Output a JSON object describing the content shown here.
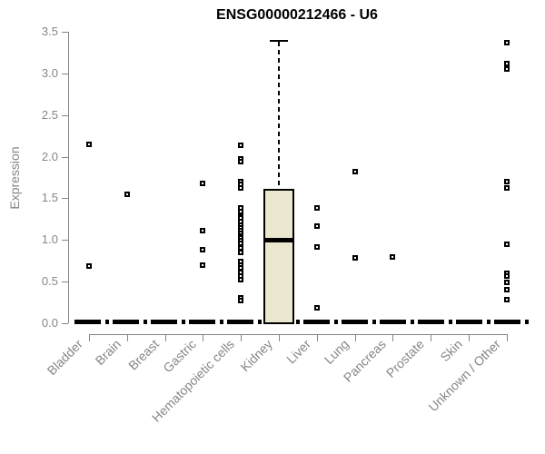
{
  "title": "ENSG00000212466 - U6",
  "y_axis": {
    "label": "Expression",
    "ticks": [
      "0.0",
      "0.5",
      "1.0",
      "1.5",
      "2.0",
      "2.5",
      "3.0",
      "3.5"
    ],
    "min": 0,
    "max": 3.5
  },
  "chart_data": {
    "type": "boxplot",
    "title": "ENSG00000212466 - U6",
    "xlabel": "",
    "ylabel": "Expression",
    "ylim": [
      0,
      3.5
    ],
    "grid": false,
    "categories": [
      "Bladder",
      "Brain",
      "Breast",
      "Gastric",
      "Hematopoietic cells",
      "Kidney",
      "Liver",
      "Lung",
      "Pancreas",
      "Prostate",
      "Skin",
      "Unknown / Other"
    ],
    "boxes": [
      {
        "category": "Bladder",
        "q1": 0,
        "median": 0,
        "q3": 0,
        "whisker_low": 0,
        "whisker_high": 0,
        "outliers": [
          2.15,
          0.69
        ]
      },
      {
        "category": "Brain",
        "q1": 0,
        "median": 0,
        "q3": 0,
        "whisker_low": 0,
        "whisker_high": 0,
        "outliers": [
          1.55
        ]
      },
      {
        "category": "Breast",
        "q1": 0,
        "median": 0,
        "q3": 0,
        "whisker_low": 0,
        "whisker_high": 0,
        "outliers": []
      },
      {
        "category": "Gastric",
        "q1": 0,
        "median": 0,
        "q3": 0,
        "whisker_low": 0,
        "whisker_high": 0,
        "outliers": [
          1.68,
          1.11,
          0.88,
          0.7
        ]
      },
      {
        "category": "Hematopoietic cells",
        "q1": 0,
        "median": 0,
        "q3": 0,
        "whisker_low": 0,
        "whisker_high": 0,
        "outliers": [
          2.14,
          1.97,
          1.94,
          1.7,
          1.67,
          1.63,
          1.38,
          1.34,
          1.29,
          1.26,
          1.22,
          1.18,
          1.15,
          1.11,
          1.08,
          1.05,
          1.02,
          0.99,
          0.96,
          0.9,
          0.85,
          0.74,
          0.7,
          0.66,
          0.61,
          0.57,
          0.52,
          0.31,
          0.27
        ]
      },
      {
        "category": "Kidney",
        "q1": 0,
        "median": 1.0,
        "q3": 1.6,
        "whisker_low": 0,
        "whisker_high": 3.4,
        "outliers": []
      },
      {
        "category": "Liver",
        "q1": 0,
        "median": 0,
        "q3": 0,
        "whisker_low": 0,
        "whisker_high": 0,
        "outliers": [
          1.39,
          1.17,
          0.92,
          0.19
        ]
      },
      {
        "category": "Lung",
        "q1": 0,
        "median": 0,
        "q3": 0,
        "whisker_low": 0,
        "whisker_high": 0,
        "outliers": [
          1.82,
          0.78
        ]
      },
      {
        "category": "Pancreas",
        "q1": 0,
        "median": 0,
        "q3": 0,
        "whisker_low": 0,
        "whisker_high": 0,
        "outliers": [
          0.8
        ]
      },
      {
        "category": "Prostate",
        "q1": 0,
        "median": 0,
        "q3": 0,
        "whisker_low": 0,
        "whisker_high": 0,
        "outliers": []
      },
      {
        "category": "Skin",
        "q1": 0,
        "median": 0,
        "q3": 0,
        "whisker_low": 0,
        "whisker_high": 0,
        "outliers": []
      },
      {
        "category": "Unknown / Other",
        "q1": 0,
        "median": 0,
        "q3": 0,
        "whisker_low": 0,
        "whisker_high": 0,
        "outliers": [
          3.37,
          3.12,
          3.05,
          1.7,
          1.62,
          0.95,
          0.6,
          0.57,
          0.49,
          0.4,
          0.28
        ]
      }
    ],
    "style": {
      "box_fill": "#ece8d0",
      "axis_color": "#868686",
      "marker_color": "#000000",
      "title_color": "#000000",
      "zero_line": "thick black dot-dash line at expression 0 (collapsed boxes)",
      "outlier_marker": "open square",
      "whisker_style": "dashed"
    }
  }
}
